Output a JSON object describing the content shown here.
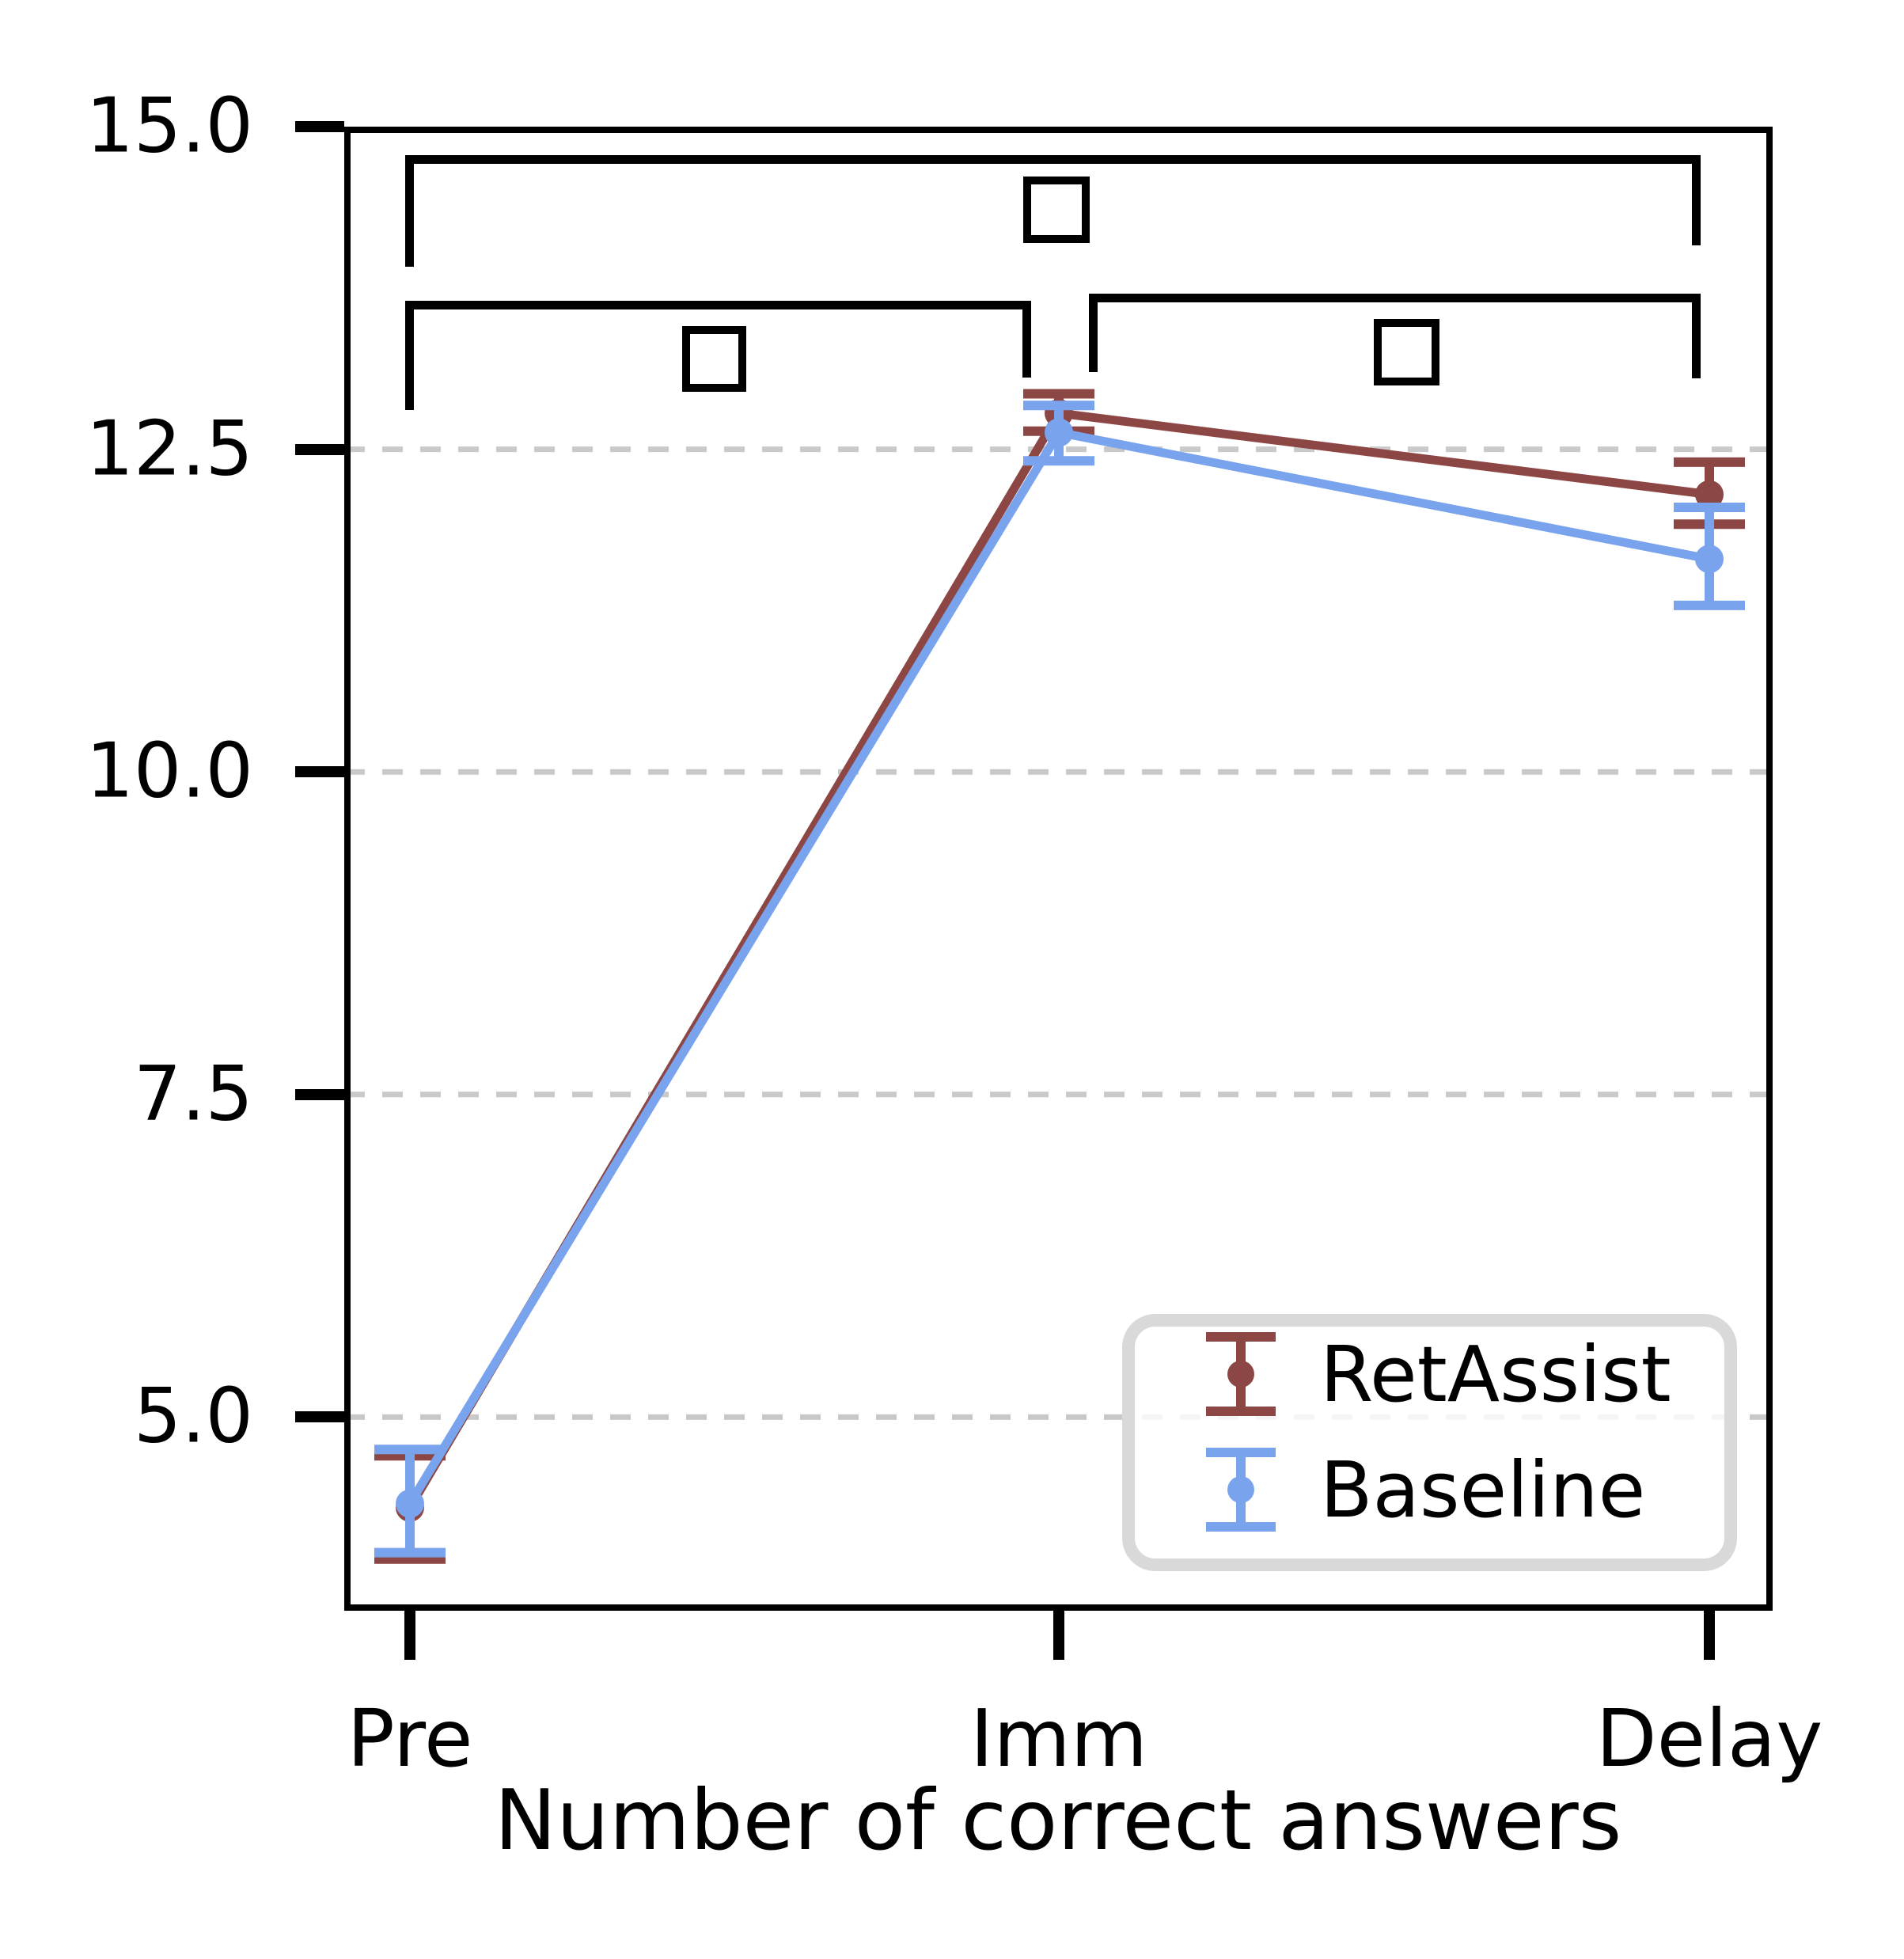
{
  "figure": {
    "background": "#ffffff",
    "description": "Point plot with error bars comparing RetAssist and Baseline across three test times"
  },
  "colors": {
    "retassist": "#8C4745",
    "baseline": "#79A3EC",
    "gridline": "#c9c9c9",
    "axis": "#000000",
    "legend_border": "#d9d9d9",
    "text": "#000000"
  },
  "chart_data": {
    "type": "line",
    "subtype": "point-plot-with-error-bars",
    "categories": [
      "Pre",
      "Imm",
      "Delay"
    ],
    "xlabel": "Number of correct answers",
    "ylabel": "",
    "title": "",
    "ylim": [
      3.5,
      15.0
    ],
    "yticks": [
      15.0,
      12.5,
      10.0,
      7.5,
      5.0
    ],
    "ytick_labels": [
      "15.0",
      "12.5",
      "10.0",
      "7.5",
      "5.0"
    ],
    "grid": "horizontal dashed gridlines at 12.5, 10.0, 7.5, 5.0",
    "legend_position": "lower right",
    "series": [
      {
        "name": "RetAssist",
        "color": "#8C4745",
        "values": [
          4.3,
          12.78,
          12.15
        ],
        "error_low": [
          3.9,
          12.64,
          11.92
        ],
        "error_high": [
          4.7,
          12.93,
          12.4
        ]
      },
      {
        "name": "Baseline",
        "color": "#79A3EC",
        "values": [
          4.33,
          12.63,
          11.65
        ],
        "error_low": [
          3.95,
          12.41,
          11.29
        ],
        "error_high": [
          4.75,
          12.84,
          12.05
        ]
      }
    ],
    "significance_brackets": [
      {
        "between": [
          "Pre",
          "Delay"
        ],
        "marker": "□",
        "note": "unrendered glyph shown as hollow square"
      },
      {
        "between": [
          "Pre",
          "Imm"
        ],
        "marker": "□",
        "note": "unrendered glyph shown as hollow square"
      },
      {
        "between": [
          "Imm",
          "Delay"
        ],
        "marker": "□",
        "note": "unrendered glyph shown as hollow square"
      }
    ]
  }
}
